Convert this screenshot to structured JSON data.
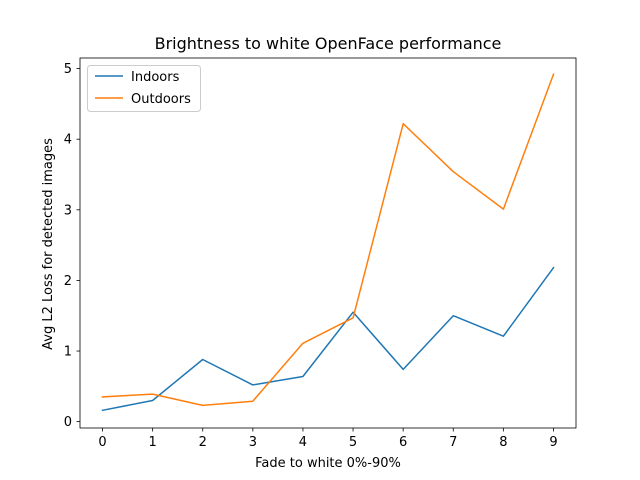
{
  "chart_data": {
    "type": "line",
    "title": "Brightness to white OpenFace performance",
    "xlabel": "Fade to white 0%-90%",
    "ylabel": "Avg L2 Loss for detected images",
    "x": [
      0,
      1,
      2,
      3,
      4,
      5,
      6,
      7,
      8,
      9
    ],
    "xticks": [
      "0",
      "1",
      "2",
      "3",
      "4",
      "5",
      "6",
      "7",
      "8",
      "9"
    ],
    "yticks": [
      "0",
      "1",
      "2",
      "3",
      "4",
      "5"
    ],
    "xlim": [
      -0.45,
      9.45
    ],
    "ylim": [
      -0.09,
      5.15
    ],
    "grid": false,
    "legend_position": "top-left",
    "series": [
      {
        "name": "Indoors",
        "color": "#1f77b4",
        "values": [
          0.16,
          0.3,
          0.88,
          0.52,
          0.64,
          1.55,
          0.74,
          1.5,
          1.21,
          2.18
        ]
      },
      {
        "name": "Outdoors",
        "color": "#ff7f0e",
        "values": [
          0.35,
          0.39,
          0.23,
          0.29,
          1.11,
          1.47,
          4.22,
          3.54,
          3.01,
          4.92
        ]
      }
    ]
  }
}
